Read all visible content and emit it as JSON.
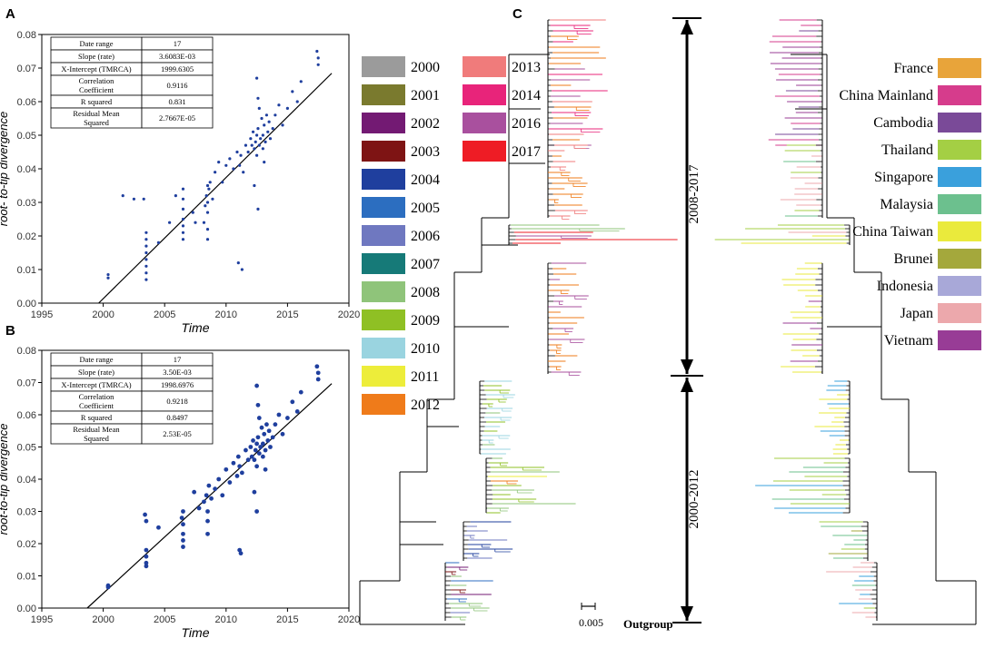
{
  "panels": {
    "a_label": "A",
    "b_label": "B",
    "c_label": "C"
  },
  "colors": {
    "years": {
      "2000": "#9b9b9b",
      "2001": "#7a7a2e",
      "2002": "#731a73",
      "2003": "#7e1414",
      "2004": "#1f3f9e",
      "2005": "#2c6ec0",
      "2006": "#6f78c0",
      "2007": "#167a78",
      "2008": "#8fc47a",
      "2009": "#8fc024",
      "2010": "#9ad4e0",
      "2011": "#eded3a",
      "2012": "#ef7b1a",
      "2013": "#f07b7b",
      "2014": "#e8247a",
      "2016": "#a9509e",
      "2017": "#ee1c25"
    },
    "countries": {
      "France": "#e8a43a",
      "China Mainland": "#d63c8c",
      "Cambodia": "#7a4a98",
      "Thailand": "#a4cf44",
      "Singapore": "#3aa0dc",
      "Malaysia": "#6cc08e",
      "China Taiwan": "#eaea3c",
      "Brunei": "#a4a83c",
      "Indonesia": "#a8a8d8",
      "Japan": "#eca8ac",
      "Vietnam": "#983c96"
    }
  },
  "chart_data": [
    {
      "type": "scatter",
      "panel": "A",
      "xlabel": "Time",
      "ylabel": "root- to-tip divergence",
      "xlim": [
        1995,
        2020
      ],
      "ylim": [
        0,
        0.08
      ],
      "xticks": [
        1995,
        2000,
        2005,
        2010,
        2015,
        2020
      ],
      "yticks": [
        0.0,
        0.01,
        0.02,
        0.03,
        0.04,
        0.05,
        0.06,
        0.07,
        0.08
      ],
      "point_color": "#1f3f9e",
      "regression": {
        "x0": 1999.6305,
        "slope": 0.0036083
      },
      "stats_table": [
        [
          "Date range",
          "17"
        ],
        [
          "Slope (rate)",
          "3.6083E-03"
        ],
        [
          "X-Intercept (TMRCA)",
          "1999.6305"
        ],
        [
          "Correlation Coefficient",
          "0.9116"
        ],
        [
          "R squared",
          "0.831"
        ],
        [
          "Residual Mean Squared",
          "2.7667E-05"
        ]
      ],
      "x": [
        2000.4,
        2000.4,
        2001.6,
        2002.5,
        2003.3,
        2003.5,
        2003.5,
        2003.5,
        2003.5,
        2003.5,
        2003.5,
        2003.5,
        2003.5,
        2004.5,
        2005.4,
        2005.9,
        2006.5,
        2006.5,
        2006.5,
        2006.5,
        2006.5,
        2006.5,
        2006.5,
        2007.3,
        2007.5,
        2008.2,
        2008.3,
        2008.4,
        2008.5,
        2008.5,
        2008.5,
        2008.5,
        2008.5,
        2008.6,
        2008.7,
        2008.9,
        2009.1,
        2009.4,
        2009.7,
        2010.0,
        2010.3,
        2010.6,
        2010.9,
        2011.1,
        2011.2,
        2011.4,
        2011.6,
        2011.8,
        2012.0,
        2012.1,
        2012.2,
        2012.3,
        2012.4,
        2012.5,
        2012.5,
        2012.6,
        2012.7,
        2012.8,
        2012.9,
        2013.0,
        2013.0,
        2013.1,
        2013.2,
        2013.3,
        2013.4,
        2013.5,
        2013.6,
        2013.8,
        2014.0,
        2014.3,
        2014.6,
        2015.0,
        2015.4,
        2015.8,
        2016.1,
        2012.5,
        2012.6,
        2012.7,
        2011.0,
        2011.3,
        2012.6,
        2012.3,
        2013.1,
        2017.4,
        2017.5,
        2017.5
      ],
      "y": [
        0.0085,
        0.0075,
        0.032,
        0.031,
        0.031,
        0.019,
        0.017,
        0.015,
        0.013,
        0.011,
        0.009,
        0.007,
        0.021,
        0.018,
        0.024,
        0.032,
        0.031,
        0.028,
        0.025,
        0.023,
        0.021,
        0.019,
        0.034,
        0.027,
        0.024,
        0.024,
        0.029,
        0.032,
        0.035,
        0.03,
        0.027,
        0.022,
        0.019,
        0.034,
        0.036,
        0.031,
        0.039,
        0.042,
        0.036,
        0.041,
        0.043,
        0.04,
        0.045,
        0.041,
        0.044,
        0.039,
        0.047,
        0.045,
        0.049,
        0.047,
        0.051,
        0.046,
        0.048,
        0.05,
        0.044,
        0.052,
        0.047,
        0.049,
        0.055,
        0.046,
        0.05,
        0.053,
        0.048,
        0.056,
        0.051,
        0.054,
        0.049,
        0.052,
        0.056,
        0.059,
        0.053,
        0.058,
        0.063,
        0.06,
        0.066,
        0.067,
        0.061,
        0.058,
        0.012,
        0.01,
        0.028,
        0.035,
        0.042,
        0.075,
        0.073,
        0.071
      ]
    },
    {
      "type": "scatter",
      "panel": "B",
      "xlabel": "Time",
      "ylabel": "root-to-tip divergence",
      "xlim": [
        1995,
        2020
      ],
      "ylim": [
        0,
        0.08
      ],
      "xticks": [
        1995,
        2000,
        2005,
        2010,
        2015,
        2020
      ],
      "yticks": [
        0.0,
        0.01,
        0.02,
        0.03,
        0.04,
        0.05,
        0.06,
        0.07,
        0.08
      ],
      "point_color": "#1f3f9e",
      "regression": {
        "x0": 1998.6976,
        "slope": 0.0035
      },
      "stats_table": [
        [
          "Date range",
          "17"
        ],
        [
          "Slope (rate)",
          "3.50E-03"
        ],
        [
          "X-Intercept (TMRCA)",
          "1998.6976"
        ],
        [
          "Correlation Coefficient",
          "0.9218"
        ],
        [
          "R squared",
          "0.8497"
        ],
        [
          "Residual Mean Squared",
          "2.53E-05"
        ]
      ],
      "x": [
        2000.4,
        2000.4,
        2003.4,
        2003.5,
        2003.5,
        2003.5,
        2003.5,
        2003.5,
        2004.5,
        2006.4,
        2006.5,
        2006.5,
        2006.5,
        2006.5,
        2006.5,
        2007.4,
        2007.8,
        2008.2,
        2008.4,
        2008.5,
        2008.5,
        2008.5,
        2008.6,
        2008.8,
        2009.1,
        2009.4,
        2009.7,
        2010.0,
        2010.3,
        2010.6,
        2010.9,
        2011.0,
        2011.1,
        2011.3,
        2011.6,
        2011.8,
        2012.0,
        2012.1,
        2012.2,
        2012.3,
        2012.4,
        2012.5,
        2012.5,
        2012.6,
        2012.7,
        2012.8,
        2012.9,
        2013.0,
        2013.0,
        2013.1,
        2013.2,
        2013.3,
        2013.4,
        2013.5,
        2013.6,
        2013.8,
        2014.0,
        2014.3,
        2014.6,
        2015.0,
        2015.4,
        2015.8,
        2016.1,
        2012.5,
        2012.6,
        2012.7,
        2011.1,
        2011.2,
        2012.5,
        2012.3,
        2013.2,
        2017.4,
        2017.5,
        2017.5
      ],
      "y": [
        0.007,
        0.0065,
        0.029,
        0.027,
        0.018,
        0.016,
        0.014,
        0.013,
        0.025,
        0.028,
        0.026,
        0.023,
        0.021,
        0.019,
        0.03,
        0.036,
        0.031,
        0.033,
        0.035,
        0.03,
        0.027,
        0.023,
        0.038,
        0.034,
        0.037,
        0.04,
        0.035,
        0.043,
        0.039,
        0.045,
        0.041,
        0.047,
        0.044,
        0.042,
        0.049,
        0.046,
        0.05,
        0.047,
        0.052,
        0.046,
        0.049,
        0.051,
        0.044,
        0.053,
        0.048,
        0.05,
        0.056,
        0.047,
        0.051,
        0.054,
        0.049,
        0.057,
        0.052,
        0.055,
        0.05,
        0.053,
        0.057,
        0.06,
        0.054,
        0.059,
        0.064,
        0.061,
        0.067,
        0.069,
        0.063,
        0.059,
        0.018,
        0.017,
        0.03,
        0.036,
        0.043,
        0.075,
        0.073,
        0.071
      ]
    }
  ],
  "year_legend": [
    {
      "label": "2000"
    },
    {
      "label": "2001"
    },
    {
      "label": "2002"
    },
    {
      "label": "2003"
    },
    {
      "label": "2004"
    },
    {
      "label": "2005"
    },
    {
      "label": "2006"
    },
    {
      "label": "2007"
    },
    {
      "label": "2008"
    },
    {
      "label": "2009"
    },
    {
      "label": "2010"
    },
    {
      "label": "2011"
    },
    {
      "label": "2012"
    },
    {
      "label": "2013"
    },
    {
      "label": "2014"
    },
    {
      "label": "2016"
    },
    {
      "label": "2017"
    }
  ],
  "country_legend": [
    {
      "label": "France"
    },
    {
      "label": "China Mainland"
    },
    {
      "label": "Cambodia"
    },
    {
      "label": "Thailand"
    },
    {
      "label": "Singapore"
    },
    {
      "label": "Malaysia"
    },
    {
      "label": "China Taiwan"
    },
    {
      "label": "Brunei"
    },
    {
      "label": "Indonesia"
    },
    {
      "label": "Japan"
    },
    {
      "label": "Vietnam"
    }
  ],
  "tree": {
    "period_upper": "2008-2017",
    "period_lower": "2000-2012",
    "scale_label": "0.005",
    "outgroup_label": "Outgroup"
  }
}
